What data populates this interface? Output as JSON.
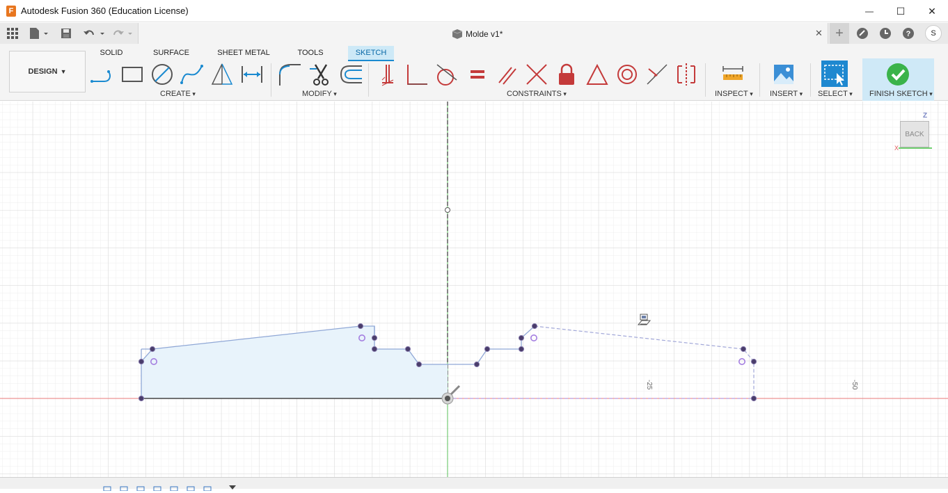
{
  "titlebar": {
    "app_title": "Autodesk Fusion 360 (Education License)",
    "logo_letter": "F",
    "minimize": "—",
    "maximize": "☐",
    "close": "✕"
  },
  "tabbar": {
    "document_title": "Molde v1*",
    "close_tab": "✕",
    "user_initial": "S"
  },
  "ribbon": {
    "workspace": "DESIGN",
    "tabs": [
      "SOLID",
      "SURFACE",
      "SHEET METAL",
      "TOOLS",
      "SKETCH"
    ],
    "active_tab": "SKETCH",
    "groups": {
      "create": "CREATE",
      "modify": "MODIFY",
      "constraints": "CONSTRAINTS",
      "inspect": "INSPECT",
      "insert": "INSERT",
      "select": "SELECT",
      "finish": "FINISH SKETCH"
    }
  },
  "viewcube": {
    "face": "BACK",
    "z_label": "Z",
    "x_label": "X"
  },
  "canvas": {
    "dimension_labels": [
      "-25",
      "-50"
    ]
  },
  "colors": {
    "accent": "#1a8ad0",
    "sketch_line": "#8fa7d6",
    "sketch_fill": "#e8f3fb",
    "point": "#4a3d6b",
    "x_axis": "#e87a7a",
    "y_axis": "#58c058",
    "finish_green": "#3bb34a",
    "constraint_red": "#c43a3a"
  }
}
